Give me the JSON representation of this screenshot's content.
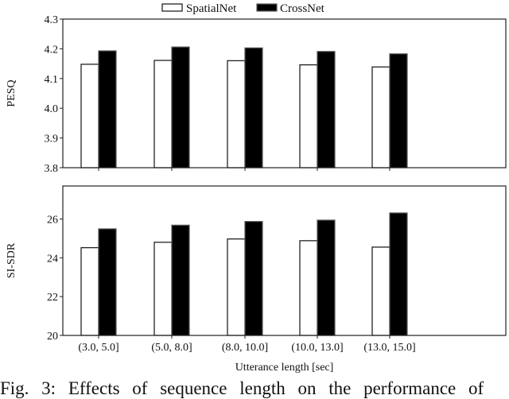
{
  "chart_data": [
    {
      "type": "bar",
      "ylabel": "PESQ",
      "xlabel": "",
      "ylim": [
        3.8,
        4.3
      ],
      "yticks": [
        "3.8",
        "3.9",
        "4.0",
        "4.1",
        "4.2",
        "4.3"
      ],
      "categories": [
        "(3.0, 5.0]",
        "(5.0, 8.0]",
        "(8.0, 10.0]",
        "(10.0, 13.0]",
        "(13.0, 15.0]"
      ],
      "series": [
        {
          "name": "SpatialNet",
          "color": "#ffffff",
          "values": [
            4.148,
            4.161,
            4.16,
            4.146,
            4.139
          ]
        },
        {
          "name": "CrossNet",
          "color": "#000000",
          "values": [
            4.193,
            4.206,
            4.203,
            4.191,
            4.183
          ]
        }
      ],
      "legend": "top-center",
      "grid": false
    },
    {
      "type": "bar",
      "ylabel": "SI-SDR",
      "xlabel": "Utterance length [sec]",
      "ylim": [
        20,
        27.7
      ],
      "yticks": [
        "20",
        "22",
        "24",
        "26"
      ],
      "categories": [
        "(3.0, 5.0]",
        "(5.0, 8.0]",
        "(8.0, 10.0]",
        "(10.0, 13.0]",
        "(13.0, 15.0]"
      ],
      "series": [
        {
          "name": "SpatialNet",
          "color": "#ffffff",
          "values": [
            24.52,
            24.8,
            24.97,
            24.88,
            24.55
          ]
        },
        {
          "name": "CrossNet",
          "color": "#000000",
          "values": [
            25.49,
            25.68,
            25.87,
            25.94,
            26.31
          ]
        }
      ],
      "grid": false
    }
  ],
  "caption": "Fig. 3: Effects of sequence length on the performance of"
}
